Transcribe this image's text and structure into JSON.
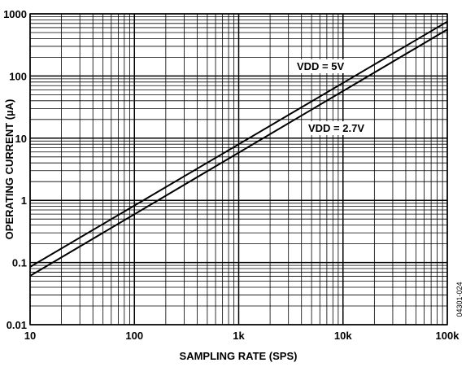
{
  "chart_data": {
    "type": "line",
    "title": "",
    "xlabel": "SAMPLING RATE (SPS)",
    "ylabel": "OPERATING CURRENT (µA)",
    "xscale": "log",
    "yscale": "log",
    "xlim": [
      10,
      100000
    ],
    "ylim": [
      0.01,
      1000
    ],
    "grid": true,
    "x_tick_labels": [
      "10",
      "100",
      "1k",
      "10k",
      "100k"
    ],
    "y_tick_labels": [
      "0.01",
      "0.1",
      "1",
      "10",
      "100",
      "1000"
    ],
    "series": [
      {
        "name": "VDD = 5V",
        "x": [
          10,
          100000
        ],
        "y": [
          0.085,
          750
        ]
      },
      {
        "name": "VDD = 2.7V",
        "x": [
          10,
          100000
        ],
        "y": [
          0.061,
          560
        ]
      }
    ],
    "figure_id": "04301-024"
  }
}
